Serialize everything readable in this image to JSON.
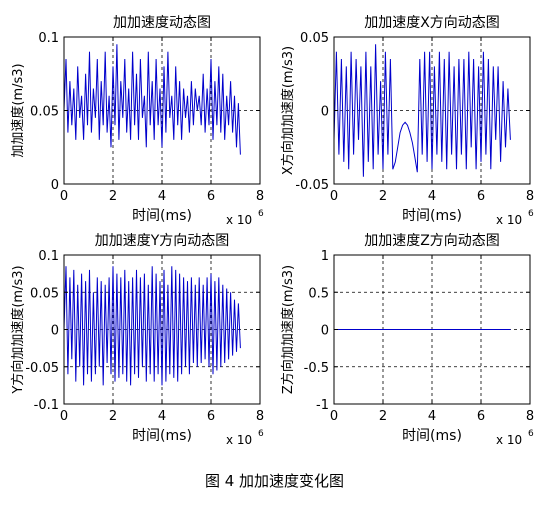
{
  "caption": "图 4  加加速度变化图",
  "colors": {
    "series": "#0000cc",
    "axes": "#000000",
    "grid": "#000000"
  },
  "chart_data": [
    {
      "type": "line",
      "title": "加加速度动态图",
      "xlabel": "时间(ms)",
      "ylabel": "加加速度(m/s3)",
      "x_exponent_label": "x 10",
      "x_exponent": "6",
      "xlim": [
        0,
        8
      ],
      "ylim": [
        0,
        0.1
      ],
      "xticks": [
        0,
        2,
        4,
        6,
        8
      ],
      "yticks": [
        0,
        0.05,
        0.1
      ],
      "xtick_labels": [
        "0",
        "2",
        "4",
        "6",
        "8"
      ],
      "ytick_labels": [
        "0",
        "0.05",
        "0.1"
      ],
      "grid": true,
      "series": [
        {
          "x": [
            0.0,
            0.08,
            0.16,
            0.24,
            0.32,
            0.4,
            0.48,
            0.56,
            0.64,
            0.72,
            0.8,
            0.88,
            0.96,
            1.04,
            1.12,
            1.2,
            1.28,
            1.36,
            1.44,
            1.52,
            1.6,
            1.68,
            1.76,
            1.84,
            1.92,
            2.0,
            2.08,
            2.16,
            2.24,
            2.32,
            2.4,
            2.48,
            2.56,
            2.64,
            2.72,
            2.8,
            2.88,
            2.96,
            3.04,
            3.12,
            3.2,
            3.28,
            3.36,
            3.44,
            3.52,
            3.6,
            3.68,
            3.76,
            3.84,
            3.92,
            4.0,
            4.08,
            4.16,
            4.24,
            4.32,
            4.4,
            4.48,
            4.56,
            4.64,
            4.72,
            4.8,
            4.88,
            4.96,
            5.04,
            5.12,
            5.2,
            5.28,
            5.36,
            5.44,
            5.52,
            5.6,
            5.68,
            5.76,
            5.84,
            5.92,
            6.0,
            6.08,
            6.16,
            6.24,
            6.32,
            6.4,
            6.48,
            6.56,
            6.64,
            6.72,
            6.8,
            6.88,
            6.96,
            7.04,
            7.12,
            7.2
          ],
          "y": [
            0.05,
            0.085,
            0.035,
            0.07,
            0.04,
            0.065,
            0.03,
            0.08,
            0.045,
            0.06,
            0.03,
            0.075,
            0.04,
            0.09,
            0.035,
            0.065,
            0.045,
            0.085,
            0.03,
            0.07,
            0.04,
            0.09,
            0.035,
            0.06,
            0.025,
            0.08,
            0.04,
            0.095,
            0.03,
            0.07,
            0.045,
            0.085,
            0.035,
            0.065,
            0.03,
            0.09,
            0.04,
            0.075,
            0.03,
            0.085,
            0.045,
            0.06,
            0.025,
            0.09,
            0.04,
            0.07,
            0.03,
            0.085,
            0.04,
            0.065,
            0.025,
            0.08,
            0.035,
            0.09,
            0.045,
            0.06,
            0.03,
            0.08,
            0.04,
            0.07,
            0.03,
            0.065,
            0.045,
            0.06,
            0.035,
            0.07,
            0.04,
            0.065,
            0.05,
            0.06,
            0.04,
            0.075,
            0.035,
            0.065,
            0.04,
            0.085,
            0.03,
            0.07,
            0.04,
            0.08,
            0.035,
            0.075,
            0.03,
            0.06,
            0.04,
            0.07,
            0.035,
            0.06,
            0.025,
            0.055,
            0.02
          ]
        }
      ]
    },
    {
      "type": "line",
      "title": "加加速度X方向动态图",
      "xlabel": "时间(ms)",
      "ylabel": "X方向加加速度(m/s3)",
      "x_exponent_label": "x 10",
      "x_exponent": "6",
      "xlim": [
        0,
        8
      ],
      "ylim": [
        -0.05,
        0.05
      ],
      "xticks": [
        0,
        2,
        4,
        6,
        8
      ],
      "yticks": [
        -0.05,
        0,
        0.05
      ],
      "xtick_labels": [
        "0",
        "2",
        "4",
        "6",
        "8"
      ],
      "ytick_labels": [
        "-0.05",
        "0",
        "0.05"
      ],
      "grid": true,
      "series": [
        {
          "x": [
            0.0,
            0.1,
            0.2,
            0.3,
            0.4,
            0.5,
            0.6,
            0.7,
            0.8,
            0.9,
            1.0,
            1.1,
            1.2,
            1.3,
            1.4,
            1.5,
            1.6,
            1.7,
            1.8,
            1.9,
            2.0,
            2.1,
            2.2,
            2.3,
            2.4,
            2.5,
            2.6,
            2.7,
            2.8,
            2.9,
            3.0,
            3.1,
            3.2,
            3.3,
            3.4,
            3.5,
            3.6,
            3.7,
            3.8,
            3.9,
            4.0,
            4.1,
            4.2,
            4.3,
            4.4,
            4.5,
            4.6,
            4.7,
            4.8,
            4.9,
            5.0,
            5.1,
            5.2,
            5.3,
            5.4,
            5.5,
            5.6,
            5.7,
            5.8,
            5.9,
            6.0,
            6.1,
            6.2,
            6.3,
            6.4,
            6.5,
            6.6,
            6.7,
            6.8,
            6.9,
            7.0,
            7.1,
            7.2
          ],
          "y": [
            -0.02,
            0.04,
            -0.03,
            0.035,
            -0.035,
            0.03,
            -0.04,
            0.04,
            -0.03,
            0.035,
            -0.02,
            0.03,
            -0.045,
            0.04,
            -0.035,
            0.03,
            -0.04,
            0.045,
            -0.03,
            0.02,
            -0.04,
            0.04,
            -0.03,
            0.035,
            -0.04,
            -0.035,
            -0.025,
            -0.015,
            -0.01,
            -0.008,
            -0.01,
            -0.015,
            -0.022,
            -0.032,
            -0.042,
            0.035,
            -0.03,
            0.04,
            -0.035,
            0.04,
            -0.04,
            0.03,
            -0.03,
            0.04,
            -0.035,
            0.035,
            -0.04,
            0.04,
            -0.03,
            0.03,
            -0.04,
            0.035,
            -0.03,
            0.035,
            -0.04,
            0.04,
            -0.025,
            0.035,
            -0.04,
            0.03,
            -0.035,
            0.04,
            -0.03,
            0.035,
            -0.04,
            0.03,
            -0.02,
            0.03,
            -0.035,
            0.02,
            -0.025,
            0.015,
            -0.02
          ]
        }
      ]
    },
    {
      "type": "line",
      "title": "加加速度Y方向动态图",
      "xlabel": "时间(ms)",
      "ylabel": "Y方向加加速度(m/s3)",
      "x_exponent_label": "x 10",
      "x_exponent": "6",
      "xlim": [
        0,
        8
      ],
      "ylim": [
        -0.1,
        0.1
      ],
      "xticks": [
        0,
        2,
        4,
        6,
        8
      ],
      "yticks": [
        -0.1,
        -0.05,
        0,
        0.05,
        0.1
      ],
      "xtick_labels": [
        "0",
        "2",
        "4",
        "6",
        "8"
      ],
      "ytick_labels": [
        "-0.1",
        "-0.05",
        "0",
        "0.05",
        "0.1"
      ],
      "grid": true,
      "series": [
        {
          "x": [
            0.0,
            0.08,
            0.16,
            0.24,
            0.32,
            0.4,
            0.48,
            0.56,
            0.64,
            0.72,
            0.8,
            0.88,
            0.96,
            1.04,
            1.12,
            1.2,
            1.28,
            1.36,
            1.44,
            1.52,
            1.6,
            1.68,
            1.76,
            1.84,
            1.92,
            2.0,
            2.08,
            2.16,
            2.24,
            2.32,
            2.4,
            2.48,
            2.56,
            2.64,
            2.72,
            2.8,
            2.88,
            2.96,
            3.04,
            3.12,
            3.2,
            3.28,
            3.36,
            3.44,
            3.52,
            3.6,
            3.68,
            3.76,
            3.84,
            3.92,
            4.0,
            4.08,
            4.16,
            4.24,
            4.32,
            4.4,
            4.48,
            4.56,
            4.64,
            4.72,
            4.8,
            4.88,
            4.96,
            5.04,
            5.12,
            5.2,
            5.28,
            5.36,
            5.44,
            5.52,
            5.6,
            5.68,
            5.76,
            5.84,
            5.92,
            6.0,
            6.08,
            6.16,
            6.24,
            6.32,
            6.4,
            6.48,
            6.56,
            6.64,
            6.72,
            6.8,
            6.88,
            6.96,
            7.04,
            7.12,
            7.2
          ],
          "y": [
            0.0,
            0.085,
            -0.06,
            0.07,
            -0.04,
            0.08,
            -0.07,
            0.06,
            -0.05,
            0.075,
            -0.075,
            0.065,
            -0.06,
            0.08,
            -0.07,
            0.05,
            -0.06,
            0.07,
            -0.05,
            0.065,
            -0.075,
            0.06,
            -0.045,
            0.07,
            -0.06,
            0.085,
            -0.07,
            0.075,
            -0.065,
            0.07,
            -0.06,
            0.08,
            -0.07,
            0.065,
            -0.075,
            0.07,
            -0.06,
            0.08,
            -0.065,
            0.07,
            -0.05,
            0.075,
            -0.07,
            0.06,
            -0.06,
            0.085,
            -0.07,
            0.075,
            -0.06,
            0.065,
            -0.075,
            0.08,
            -0.07,
            0.06,
            -0.06,
            0.085,
            -0.065,
            0.08,
            -0.07,
            0.075,
            -0.06,
            0.07,
            -0.05,
            0.065,
            -0.06,
            0.07,
            -0.045,
            0.06,
            -0.05,
            0.07,
            -0.045,
            0.06,
            -0.04,
            0.07,
            -0.05,
            0.075,
            -0.06,
            0.065,
            -0.055,
            0.07,
            -0.05,
            0.06,
            -0.045,
            0.055,
            -0.04,
            0.05,
            -0.035,
            0.04,
            -0.03,
            0.035,
            -0.025
          ]
        }
      ]
    },
    {
      "type": "line",
      "title": "加加速度Z方向动态图",
      "xlabel": "时间(ms)",
      "ylabel": "Z方向加加速度(m/s3)",
      "x_exponent_label": "x 10",
      "x_exponent": "6",
      "xlim": [
        0,
        8
      ],
      "ylim": [
        -1,
        1
      ],
      "xticks": [
        0,
        2,
        4,
        6,
        8
      ],
      "yticks": [
        -1,
        -0.5,
        0,
        0.5,
        1
      ],
      "xtick_labels": [
        "0",
        "2",
        "4",
        "6",
        "8"
      ],
      "ytick_labels": [
        "-1",
        "-0.5",
        "0",
        "0.5",
        "1"
      ],
      "grid": true,
      "series": [
        {
          "x": [
            0,
            7.2
          ],
          "y": [
            0,
            0
          ]
        }
      ]
    }
  ]
}
